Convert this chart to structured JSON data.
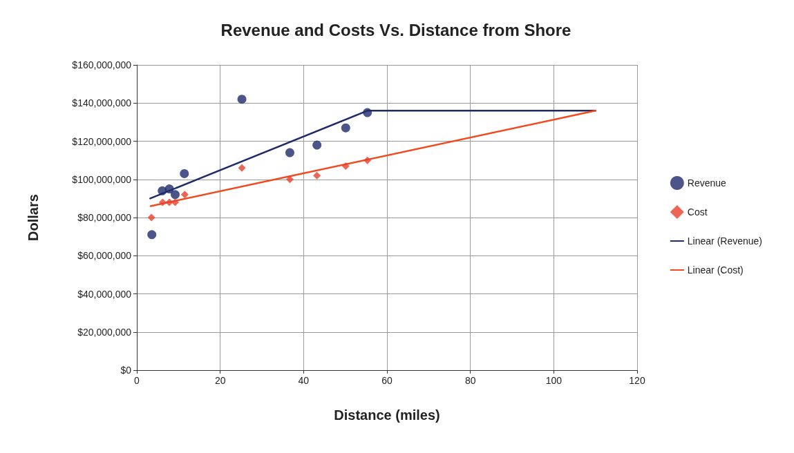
{
  "chart_data": {
    "type": "scatter",
    "title": "Revenue and Costs Vs. Distance from Shore",
    "xlabel": "Distance (miles)",
    "ylabel": "Dollars",
    "series": [
      {
        "name": "Revenue",
        "marker": "circle",
        "color": "#1f2a6b",
        "x": [
          3.6,
          6.1,
          7.8,
          9.2,
          11.4,
          25.2,
          36.7,
          43.2,
          50.1,
          55.3
        ],
        "values": [
          71000000,
          94000000,
          95000000,
          92000000,
          103000000,
          142000000,
          114000000,
          118000000,
          127000000,
          135000000
        ]
      },
      {
        "name": "Cost",
        "marker": "diamond",
        "color": "#e8402a",
        "x": [
          3.5,
          6.2,
          7.8,
          9.2,
          11.5,
          25.2,
          36.7,
          43.2,
          50.1,
          55.3
        ],
        "values": [
          80000000,
          88000000,
          88000000,
          88000000,
          92000000,
          106000000,
          100000000,
          102000000,
          107000000,
          110000000
        ]
      },
      {
        "name": "Linear (Revenue)",
        "type": "line",
        "marker": "none",
        "color": "#1f2a6b",
        "x": [
          3.2,
          55.3,
          110
        ],
        "values": [
          90000000,
          136000000,
          136000000
        ]
      },
      {
        "name": "Linear (Cost)",
        "type": "line",
        "marker": "none",
        "color": "#f04a1e",
        "x": [
          3.3,
          110
        ],
        "values": [
          86000000,
          136000000
        ]
      }
    ],
    "xlim": [
      0,
      120
    ],
    "xticks": [
      0,
      20,
      40,
      60,
      80,
      100,
      120
    ],
    "ylim": [
      0,
      160000000
    ],
    "yticks": [
      {
        "value": 0,
        "label": "$0"
      },
      {
        "value": 20000000,
        "label": "$20,000,000"
      },
      {
        "value": 40000000,
        "label": "$40,000,000"
      },
      {
        "value": 60000000,
        "label": "$60,000,000"
      },
      {
        "value": 80000000,
        "label": "$80,000,000"
      },
      {
        "value": 100000000,
        "label": "$100,000,000"
      },
      {
        "value": 120000000,
        "label": "$120,000,000"
      },
      {
        "value": 140000000,
        "label": "$140,000,000"
      },
      {
        "value": 160000000,
        "label": "$160,000,000"
      }
    ],
    "grid": true,
    "legend": "right"
  }
}
